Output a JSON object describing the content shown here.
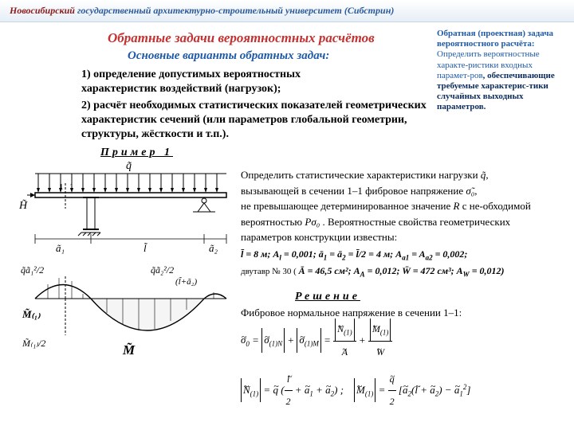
{
  "header": {
    "uni_red": "Новосибирский",
    "uni_rest": " государственный архитектурно-строительный университет (Сибстрин)"
  },
  "titles": {
    "main": "Обратные задачи вероятностных расчётов",
    "sub": "Основные варианты обратных задач:"
  },
  "side_def": {
    "l1": "Обратная (проектная) задача вероятностного расчёта:",
    "l2": " Определить вероятностные характе-ристики входных парамет-ров",
    "l3": ", обеспечивающие требуемые характерис-тики случайных выходных параметров."
  },
  "tasks": {
    "t1": "1) определение допустимых вероятностных характеристик воздействий (нагрузок);",
    "t2": "2) расчёт необходимых статистических показателей геометрических характеристик сечений (или параметров глобальной геометрии, структуры, жёсткости и т.п.)."
  },
  "example": {
    "label": "Пример 1"
  },
  "problem": {
    "p1": "Определить статистические характеристики нагрузки ",
    "p2": "вызывающей в сечении 1–1 фибровое напряжение ",
    "p3": "не превышающее детерминированное значение ",
    "p4": " с не-обходимой вероятностью ",
    "p5": ". Вероятностные свойства геометрических параметров конструкции известны:",
    "R": "R",
    "P": "Pσ₀",
    "q": "q̃,",
    "s": "σ̃₀,"
  },
  "values": {
    "line1_a": "l̄ = 8 м; A",
    "line1_b": " = 0,001; ā",
    "line1_c": " = ā",
    "line1_d": " = l̄/2 = 4 м; A",
    "line1_e": " = A",
    "line1_f": " = 0,002;",
    "line2_pref": "двутавр № 30 ( ",
    "line2_a": "Ā = 46,5 см²; A",
    "line2_b": " = 0,012; ",
    "line2_c": "W̄ = 472 см³; A",
    "line2_d": " = 0,012)"
  },
  "solution": {
    "label": "Решение",
    "text": "Фибровое нормальное напряжение в сечении 1–1:"
  },
  "formulas": {
    "f1": "σ̃₀ = |σ̃₍₁₎ₙ| + |σ̃₍₁₎ₘ| = |Ñ₍₁₎| / Ã + |M̃₍₁₎| / W̃",
    "f2": "|Ñ₍₁₎| = q̃ ( l̃/2 + ã₁ + ã₂ ) ;   |M̃₍₁₎| = (q̃/2)[ ã₂(l̃ + ã₂) − ã₁² ]"
  },
  "diagram_labels": {
    "q": "q̃",
    "H": "H̃",
    "a1": "ã₁",
    "a2": "ã₂",
    "l": "l̃",
    "qa1": "q̃ã₁²/2",
    "qa2": "q̃ã₂²/2",
    "la2": "(l̃ + ã₂)",
    "M1": "M̃₍₁₎",
    "M": "M̃",
    "M12": "M̃₍₁₎/2",
    "one": "1"
  },
  "colors": {
    "header_red": "#8b1a1a",
    "header_blue": "#2a5a9c",
    "title_red": "#c53030",
    "blue": "#1e5aa8"
  }
}
